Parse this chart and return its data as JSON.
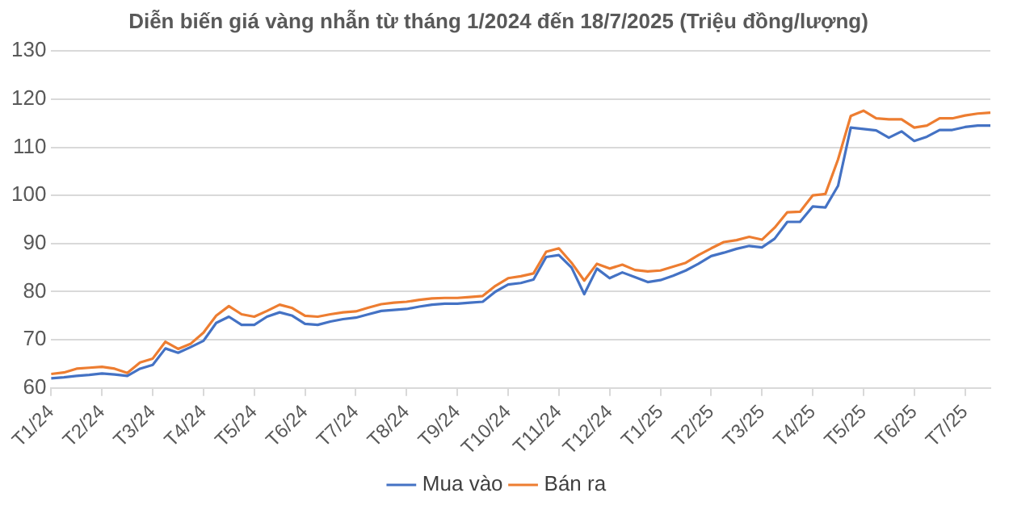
{
  "chart_data": {
    "type": "line",
    "title": "Diễn biến giá vàng nhẫn từ tháng 1/2024 đến 18/7/2025 (Triệu đồng/lượng)",
    "categories": [
      "T1/24",
      null,
      null,
      null,
      "T2/24",
      null,
      null,
      null,
      "T3/24",
      null,
      null,
      null,
      "T4/24",
      null,
      null,
      null,
      "T5/24",
      null,
      null,
      null,
      "T6/24",
      null,
      null,
      null,
      "T7/24",
      null,
      null,
      null,
      "T8/24",
      null,
      null,
      null,
      "T9/24",
      null,
      null,
      null,
      "T10/24",
      null,
      null,
      null,
      "T11/24",
      null,
      null,
      null,
      "T12/24",
      null,
      null,
      null,
      "T1/25",
      null,
      null,
      null,
      "T2/25",
      null,
      null,
      null,
      "T3/25",
      null,
      null,
      null,
      "T4/25",
      null,
      null,
      null,
      "T5/25",
      null,
      null,
      null,
      "T6/25",
      null,
      null,
      null,
      "T7/25",
      null,
      null
    ],
    "series": [
      {
        "name": "Mua vào",
        "color": "#4472c4",
        "values": [
          62.0,
          62.2,
          62.5,
          62.7,
          63.0,
          62.8,
          62.5,
          64.0,
          64.8,
          68.2,
          67.3,
          68.5,
          69.8,
          73.5,
          74.8,
          73.1,
          73.1,
          74.8,
          75.7,
          75.0,
          73.3,
          73.1,
          73.8,
          74.3,
          74.6,
          75.3,
          76.0,
          76.2,
          76.4,
          76.9,
          77.3,
          77.5,
          77.5,
          77.7,
          77.9,
          80.0,
          81.5,
          81.8,
          82.5,
          87.2,
          87.6,
          85.0,
          79.5,
          84.8,
          82.8,
          84.0,
          83.0,
          82.0,
          82.4,
          83.3,
          84.4,
          85.8,
          87.4,
          88.1,
          88.9,
          89.5,
          89.2,
          91.0,
          94.5,
          94.5,
          97.7,
          97.5,
          102.0,
          114.1,
          113.8,
          113.5,
          112.0,
          113.3,
          111.3,
          112.2,
          113.6,
          113.6,
          114.2,
          114.5,
          114.5
        ]
      },
      {
        "name": "Bán ra",
        "color": "#ed7d31",
        "values": [
          62.9,
          63.2,
          64.0,
          64.2,
          64.4,
          64.0,
          63.1,
          65.3,
          66.1,
          69.6,
          68.1,
          69.2,
          71.5,
          75.0,
          77.0,
          75.3,
          74.8,
          76.0,
          77.3,
          76.6,
          75.0,
          74.8,
          75.3,
          75.7,
          75.9,
          76.7,
          77.4,
          77.7,
          77.9,
          78.3,
          78.6,
          78.7,
          78.7,
          78.9,
          79.1,
          81.2,
          82.8,
          83.2,
          83.8,
          88.3,
          89.0,
          86.0,
          82.3,
          85.8,
          84.8,
          85.6,
          84.5,
          84.2,
          84.4,
          85.2,
          86.0,
          87.6,
          89.0,
          90.3,
          90.7,
          91.4,
          90.8,
          93.3,
          96.5,
          96.6,
          100.0,
          100.3,
          107.5,
          116.5,
          117.6,
          116.0,
          115.8,
          115.8,
          114.1,
          114.5,
          116.0,
          116.0,
          116.6,
          117.0,
          117.2
        ]
      }
    ],
    "ylim": [
      60,
      130
    ],
    "yticks": [
      60,
      70,
      80,
      90,
      100,
      110,
      120,
      130
    ],
    "grid": "y",
    "legend": "bottom"
  }
}
